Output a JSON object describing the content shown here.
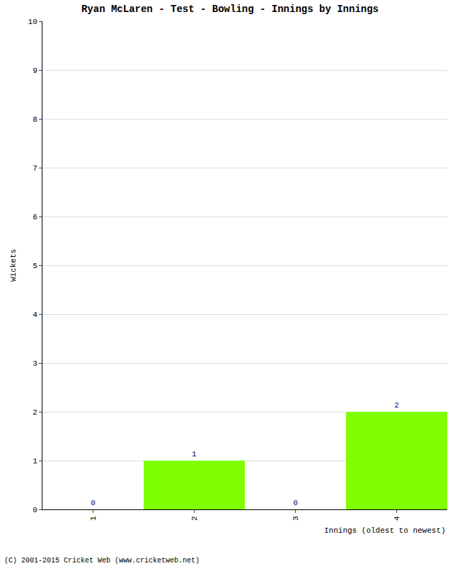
{
  "chart_data": {
    "type": "bar",
    "title": "Ryan McLaren - Test - Bowling - Innings by Innings",
    "x_label": "Innings (oldest to newest)",
    "y_label": "Wickets",
    "annotations": [
      "(C) 2001-2015 Cricket Web (www.cricketweb.net)"
    ],
    "categories": [
      "1",
      "2",
      "3",
      "4"
    ],
    "values": [
      0,
      1,
      0,
      2
    ],
    "color": "#80ff00",
    "ylim": [
      0,
      10
    ],
    "yticks": [
      0,
      1,
      2,
      3,
      4,
      5,
      6,
      7,
      8,
      9,
      10
    ],
    "grid": true,
    "data_labels": true
  }
}
